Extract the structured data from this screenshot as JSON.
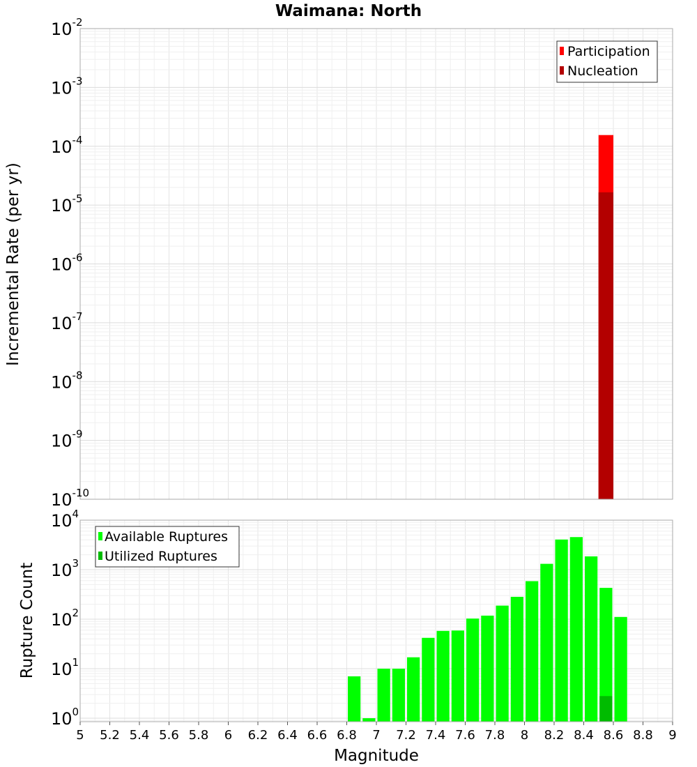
{
  "chart_data": {
    "type": "bar",
    "title": "Waimana: North",
    "xlabel": "Magnitude",
    "xlim": [
      5,
      9
    ],
    "x_ticks": [
      "5",
      "5.2",
      "5.4",
      "5.6",
      "5.8",
      "6",
      "6.2",
      "6.4",
      "6.6",
      "6.8",
      "7",
      "7.2",
      "7.4",
      "7.6",
      "7.8",
      "8",
      "8.2",
      "8.4",
      "8.6",
      "8.8",
      "9"
    ],
    "panels": [
      {
        "id": "rate",
        "ylabel": "Incremental Rate (per yr)",
        "yscale": "log",
        "ylim_exp": [
          -10,
          -2
        ],
        "y_tick_base": "10",
        "y_tick_exponents": [
          "-10",
          "-9",
          "-8",
          "-7",
          "-6",
          "-5",
          "-4",
          "-3",
          "-2"
        ],
        "legend": {
          "position": "top-right",
          "entries": [
            "Participation",
            "Nucleation"
          ]
        },
        "series": [
          {
            "name": "Participation",
            "color": "#ff0000",
            "x": [
              8.55
            ],
            "values": [
              0.000155
            ]
          },
          {
            "name": "Nucleation",
            "color": "#b30000",
            "x": [
              8.55
            ],
            "values": [
              1.65e-05
            ]
          }
        ]
      },
      {
        "id": "count",
        "ylabel": "Rupture Count",
        "yscale": "log",
        "ylim_exp": [
          -0.07,
          4
        ],
        "y_tick_base": "10",
        "y_tick_exponents": [
          "0",
          "1",
          "2",
          "3",
          "4"
        ],
        "legend": {
          "position": "top-left",
          "entries": [
            "Available Ruptures",
            "Utilized Ruptures"
          ]
        },
        "series": [
          {
            "name": "Available Ruptures",
            "color": "#00ff00",
            "x": [
              6.85,
              6.95,
              7.05,
              7.15,
              7.25,
              7.35,
              7.45,
              7.55,
              7.65,
              7.75,
              7.85,
              7.95,
              8.05,
              8.15,
              8.25,
              8.35,
              8.45,
              8.55,
              8.65
            ],
            "values": [
              7,
              1,
              10,
              10,
              17,
              42,
              58,
              59,
              103,
              118,
              188,
              283,
              586,
              1313,
              4065,
              4554,
              1856,
              429,
              111
            ]
          },
          {
            "name": "Utilized Ruptures",
            "color": "#00bb00",
            "x": [
              8.55
            ],
            "values": [
              2.8
            ]
          }
        ]
      }
    ]
  }
}
